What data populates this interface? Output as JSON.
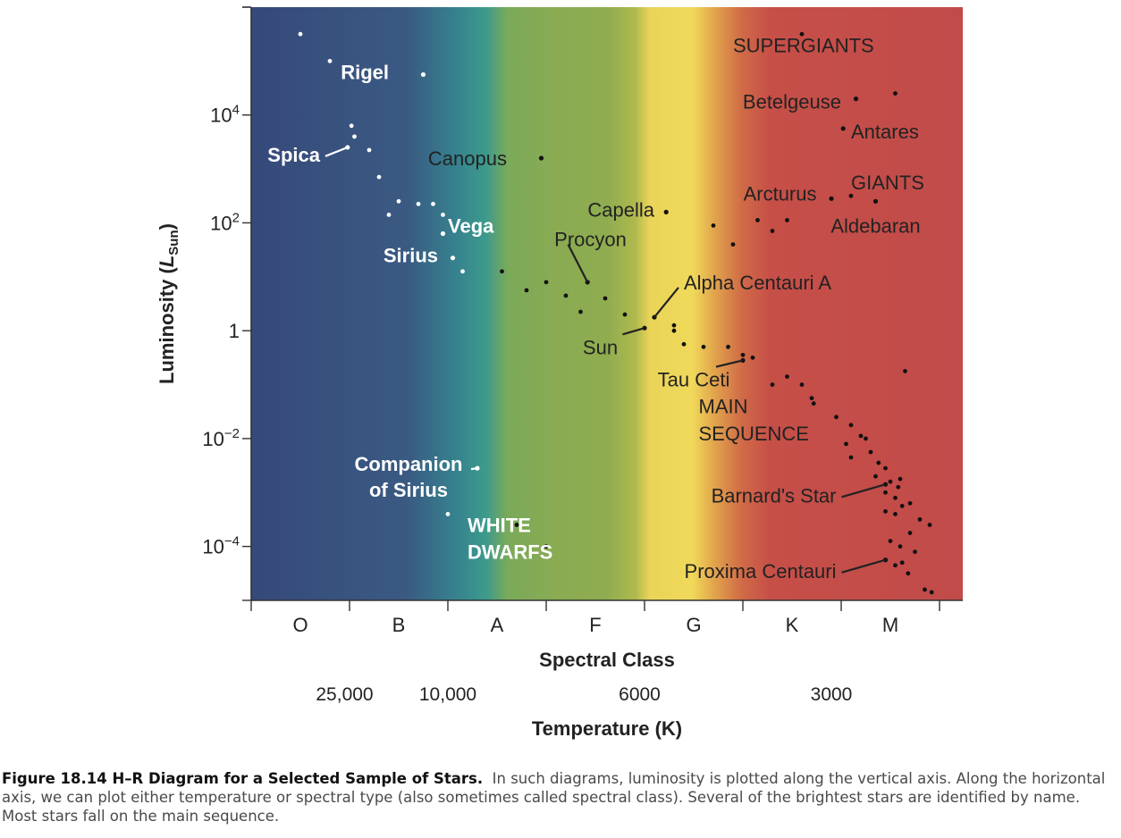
{
  "chart_data": {
    "type": "scatter",
    "title": "H–R Diagram for a Selected Sample of Stars",
    "xlabel": "Spectral Class",
    "x2label": "Temperature (K)",
    "ylabel_main": "Luminosity (",
    "ylabel_italic": "L",
    "ylabel_sub": "Sun",
    "ylabel_close": ")",
    "x_scale": "spectral class, 0 = start of O, 1 unit per class",
    "xlim": [
      0,
      7.2
    ],
    "y_scale": "log10 luminosity",
    "ylim": [
      -5,
      6
    ],
    "y_ticks": [
      {
        "exp": 4,
        "base": "10",
        "sup": "4"
      },
      {
        "exp": 2,
        "base": "10",
        "sup": "2"
      },
      {
        "exp": 0,
        "base": "1",
        "sup": ""
      },
      {
        "exp": -2,
        "base": "10",
        "sup": "−2"
      },
      {
        "exp": -4,
        "base": "10",
        "sup": "−4"
      }
    ],
    "spectral_classes": [
      "O",
      "B",
      "A",
      "F",
      "G",
      "K",
      "M"
    ],
    "temperature_ticks": [
      {
        "x": 0.95,
        "label": "25,000"
      },
      {
        "x": 2.0,
        "label": "10,000"
      },
      {
        "x": 3.95,
        "label": "6000"
      },
      {
        "x": 5.9,
        "label": "3000"
      }
    ],
    "region_labels": [
      {
        "text": "SUPERGIANTS",
        "x": 4.9,
        "logL": 5.3,
        "color": "dark"
      },
      {
        "text": "GIANTS",
        "x": 6.1,
        "logL": 2.75,
        "color": "dark"
      },
      {
        "text": "MAIN",
        "x": 4.55,
        "logL": -1.4,
        "color": "dark"
      },
      {
        "text": "SEQUENCE",
        "x": 4.55,
        "logL": -1.9,
        "color": "dark"
      },
      {
        "text": "WHITE",
        "x": 2.2,
        "logL": -3.6,
        "color": "light"
      },
      {
        "text": "DWARFS",
        "x": 2.2,
        "logL": -4.1,
        "color": "light"
      }
    ],
    "named_stars": [
      {
        "name": "Rigel",
        "x": 1.75,
        "logL": 4.75,
        "lx": 1.4,
        "llogL": 4.8,
        "anchor": "end",
        "color": "light",
        "leader": false
      },
      {
        "name": "Spica",
        "x": 0.98,
        "logL": 3.4,
        "lx": 0.7,
        "llogL": 3.27,
        "anchor": "end",
        "color": "light",
        "leader": true
      },
      {
        "name": "Canopus",
        "x": 2.95,
        "logL": 3.2,
        "lx": 2.6,
        "llogL": 3.2,
        "anchor": "end",
        "color": "dark",
        "leader": false
      },
      {
        "name": "Vega",
        "x": 1.95,
        "logL": 1.8,
        "lx": 2.0,
        "llogL": 1.95,
        "anchor": "start",
        "color": "light",
        "leader": false
      },
      {
        "name": "Sirius",
        "x": 2.05,
        "logL": 1.35,
        "lx": 1.9,
        "llogL": 1.4,
        "anchor": "end",
        "color": "light",
        "leader": false
      },
      {
        "name": "Capella",
        "x": 4.22,
        "logL": 2.2,
        "lx": 4.1,
        "llogL": 2.25,
        "anchor": "end",
        "color": "dark",
        "leader": false
      },
      {
        "name": "Procyon",
        "x": 3.42,
        "logL": 0.9,
        "lx": 3.45,
        "llogL": 1.7,
        "anchor": "middle",
        "color": "dark",
        "leader": true
      },
      {
        "name": "Alpha Centauri A",
        "x": 4.1,
        "logL": 0.25,
        "lx": 4.4,
        "llogL": 0.9,
        "anchor": "start",
        "color": "dark",
        "leader": true
      },
      {
        "name": "Sun",
        "x": 4.0,
        "logL": 0.05,
        "lx": 3.55,
        "llogL": -0.3,
        "anchor": "middle",
        "color": "dark",
        "leader": true
      },
      {
        "name": "Tau Ceti",
        "x": 5.0,
        "logL": -0.55,
        "lx": 4.5,
        "llogL": -0.9,
        "anchor": "middle",
        "color": "dark",
        "leader": true
      },
      {
        "name": "Betelgeuse",
        "x": 6.15,
        "logL": 4.3,
        "lx": 6.0,
        "llogL": 4.25,
        "anchor": "end",
        "color": "dark",
        "leader": false
      },
      {
        "name": "Antares",
        "x": 6.02,
        "logL": 3.75,
        "lx": 6.1,
        "llogL": 3.7,
        "anchor": "start",
        "color": "dark",
        "leader": false
      },
      {
        "name": "Arcturus",
        "x": 5.9,
        "logL": 2.45,
        "lx": 5.75,
        "llogL": 2.55,
        "anchor": "end",
        "color": "dark",
        "leader": false
      },
      {
        "name": "Aldebaran",
        "x": 6.35,
        "logL": 2.4,
        "lx": 6.35,
        "llogL": 1.95,
        "anchor": "middle",
        "color": "dark",
        "leader": false
      },
      {
        "name": "Companion of Sirius",
        "line1": "Companion",
        "line2": "of Sirius",
        "x": 2.3,
        "logL": -2.55,
        "lx": 1.6,
        "llogL": -2.6,
        "anchor": "middle",
        "color": "light",
        "leader": true
      },
      {
        "name": "Barnard's Star",
        "x": 6.45,
        "logL": -2.85,
        "lx": 5.95,
        "llogL": -3.05,
        "anchor": "end",
        "color": "dark",
        "leader": true
      },
      {
        "name": "Proxima Centauri",
        "x": 6.45,
        "logL": -4.25,
        "lx": 5.95,
        "llogL": -4.45,
        "anchor": "end",
        "color": "dark",
        "leader": true
      }
    ],
    "stars": [
      {
        "x": 0.5,
        "logL": 5.5
      },
      {
        "x": 0.8,
        "logL": 5.0
      },
      {
        "x": 1.02,
        "logL": 3.8
      },
      {
        "x": 1.05,
        "logL": 3.6
      },
      {
        "x": 1.2,
        "logL": 3.35
      },
      {
        "x": 1.3,
        "logL": 2.85
      },
      {
        "x": 1.4,
        "logL": 2.15
      },
      {
        "x": 1.5,
        "logL": 2.4
      },
      {
        "x": 1.7,
        "logL": 2.35
      },
      {
        "x": 1.85,
        "logL": 2.35
      },
      {
        "x": 1.95,
        "logL": 2.15
      },
      {
        "x": 2.15,
        "logL": 1.1
      },
      {
        "x": 2.55,
        "logL": 1.1
      },
      {
        "x": 2.8,
        "logL": 0.75
      },
      {
        "x": 3.0,
        "logL": 0.9
      },
      {
        "x": 3.2,
        "logL": 0.65
      },
      {
        "x": 3.35,
        "logL": 0.35
      },
      {
        "x": 3.6,
        "logL": 0.6
      },
      {
        "x": 3.8,
        "logL": 0.3
      },
      {
        "x": 4.3,
        "logL": 0.1
      },
      {
        "x": 4.4,
        "logL": -0.25
      },
      {
        "x": 4.6,
        "logL": -0.3
      },
      {
        "x": 4.85,
        "logL": -0.3
      },
      {
        "x": 5.1,
        "logL": -0.5
      },
      {
        "x": 5.3,
        "logL": -1.0
      },
      {
        "x": 5.45,
        "logL": -0.85
      },
      {
        "x": 5.7,
        "logL": -1.25
      },
      {
        "x": 5.72,
        "logL": -1.35
      },
      {
        "x": 5.95,
        "logL": -1.6
      },
      {
        "x": 6.1,
        "logL": -1.75
      },
      {
        "x": 6.2,
        "logL": -1.95
      },
      {
        "x": 6.05,
        "logL": -2.1
      },
      {
        "x": 6.3,
        "logL": -2.25
      },
      {
        "x": 6.1,
        "logL": -2.35
      },
      {
        "x": 6.38,
        "logL": -2.45
      },
      {
        "x": 6.45,
        "logL": -2.55
      },
      {
        "x": 6.35,
        "logL": -2.7
      },
      {
        "x": 6.5,
        "logL": -2.8
      },
      {
        "x": 6.58,
        "logL": -2.9
      },
      {
        "x": 6.6,
        "logL": -2.75
      },
      {
        "x": 6.45,
        "logL": -3.0
      },
      {
        "x": 6.55,
        "logL": -3.1
      },
      {
        "x": 6.62,
        "logL": -3.25
      },
      {
        "x": 6.7,
        "logL": -3.2
      },
      {
        "x": 6.45,
        "logL": -3.35
      },
      {
        "x": 6.55,
        "logL": -3.4
      },
      {
        "x": 6.8,
        "logL": -3.5
      },
      {
        "x": 6.9,
        "logL": -3.6
      },
      {
        "x": 6.7,
        "logL": -3.75
      },
      {
        "x": 6.5,
        "logL": -3.9
      },
      {
        "x": 6.6,
        "logL": -4.0
      },
      {
        "x": 6.75,
        "logL": -4.1
      },
      {
        "x": 6.62,
        "logL": -4.3
      },
      {
        "x": 6.55,
        "logL": -4.35
      },
      {
        "x": 6.68,
        "logL": -4.5
      },
      {
        "x": 6.85,
        "logL": -4.8
      },
      {
        "x": 6.92,
        "logL": -4.85
      },
      {
        "x": 6.65,
        "logL": -0.75
      },
      {
        "x": 5.6,
        "logL": -1.0
      },
      {
        "x": 6.25,
        "logL": -2.0
      },
      {
        "x": 2.0,
        "logL": -3.4
      },
      {
        "x": 2.5,
        "logL": -3.6
      },
      {
        "x": 2.7,
        "logL": -3.6
      },
      {
        "x": 3.0,
        "logL": -4.0
      },
      {
        "x": 5.6,
        "logL": 5.5
      },
      {
        "x": 6.55,
        "logL": 4.4
      },
      {
        "x": 6.1,
        "logL": 2.5
      },
      {
        "x": 4.7,
        "logL": 1.95
      },
      {
        "x": 5.15,
        "logL": 2.05
      },
      {
        "x": 5.3,
        "logL": 1.85
      },
      {
        "x": 5.45,
        "logL": 2.05
      },
      {
        "x": 4.9,
        "logL": 1.6
      },
      {
        "x": 4.3,
        "logL": 0.0
      },
      {
        "x": 5.0,
        "logL": -0.45
      }
    ],
    "background": "temperature color gradient blue to red",
    "grid": false,
    "legend": "none"
  },
  "caption": {
    "bold": "Figure 18.14 H–R Diagram for a Selected Sample of Stars.",
    "text": "In such diagrams, luminosity is plotted along the vertical axis. Along the horizontal axis, we can plot either temperature or spectral type (also sometimes called spectral class). Several of the brightest stars are identified by name. Most stars fall on the main sequence."
  }
}
